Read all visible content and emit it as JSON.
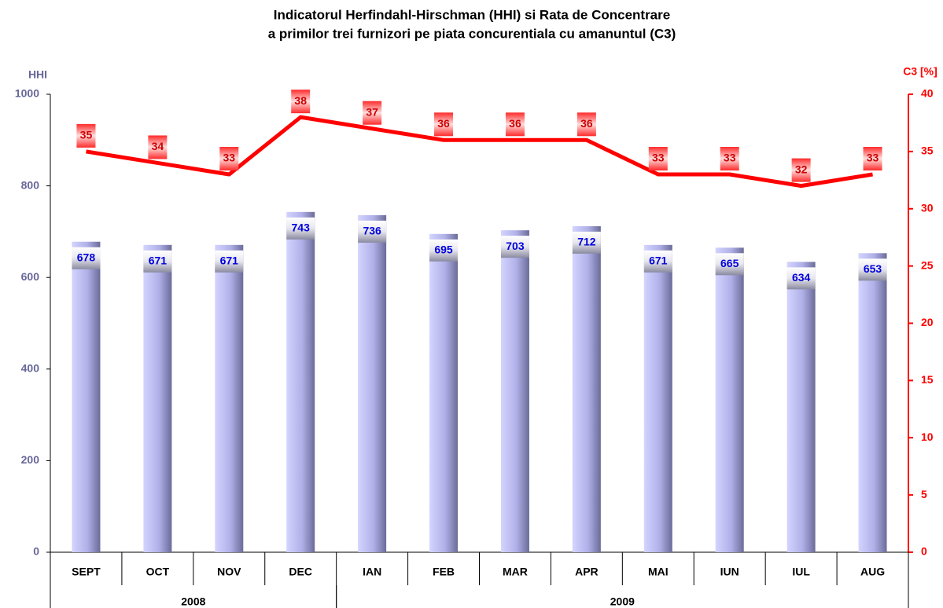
{
  "chart_data": {
    "type": "bar-line",
    "title": [
      "Indicatorul Herfindahl-Hirschman (HHI) si Rata de Concentrare",
      "a primilor trei furnizori pe piata concurentiala cu amanuntul (C3)"
    ],
    "y_label": "HHI",
    "y2_label": "C3 [%]",
    "categories": [
      "SEPT",
      "OCT",
      "NOV",
      "DEC",
      "IAN",
      "FEB",
      "MAR",
      "APR",
      "MAI",
      "IUN",
      "IUL",
      "AUG"
    ],
    "x_groups": [
      "2008",
      "2008",
      "2008",
      "2008",
      "2009",
      "2009",
      "2009",
      "2009",
      "2009",
      "2009",
      "2009",
      "2009"
    ],
    "series": [
      {
        "name": "HHI",
        "type": "bar",
        "color": "#9999dd",
        "values": [
          678,
          671,
          671,
          743,
          736,
          695,
          703,
          712,
          671,
          665,
          634,
          653
        ]
      },
      {
        "name": "C3",
        "type": "line",
        "axis": "y2",
        "color": "#ff0000",
        "values": [
          35,
          34,
          33,
          38,
          37,
          36,
          36,
          36,
          33,
          33,
          32,
          33
        ]
      }
    ],
    "ylim": [
      0,
      1000
    ],
    "yticks": [
      0,
      200,
      400,
      600,
      800,
      1000
    ],
    "y2lim": [
      0,
      40
    ],
    "y2ticks": [
      0,
      5,
      10,
      15,
      20,
      25,
      30,
      35,
      40
    ],
    "grid": false
  }
}
